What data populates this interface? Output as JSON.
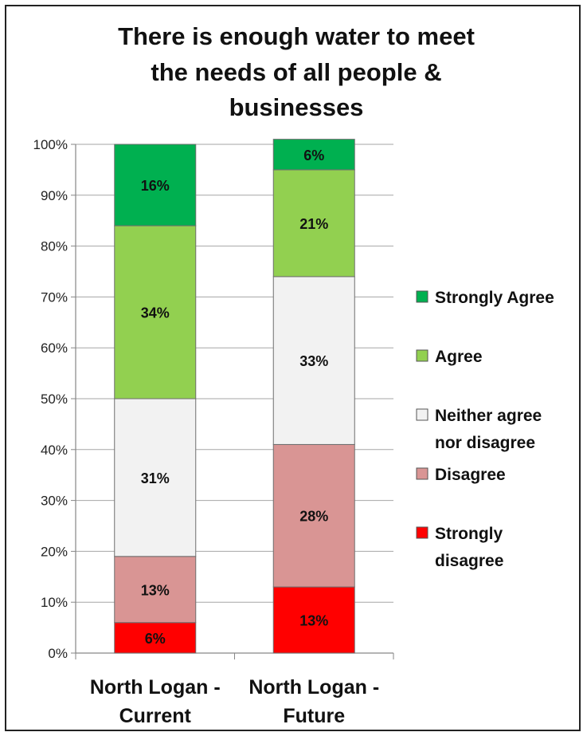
{
  "chart_data": {
    "type": "bar",
    "stacked": true,
    "title": [
      "There is enough water to meet",
      "the needs of all people &",
      "businesses"
    ],
    "ylim": [
      0,
      100
    ],
    "y_ticks": [
      "0%",
      "10%",
      "20%",
      "30%",
      "40%",
      "50%",
      "60%",
      "70%",
      "80%",
      "90%",
      "100%"
    ],
    "grid": true,
    "legend_position": "right",
    "categories": [
      [
        "North Logan -",
        "Current"
      ],
      [
        "North Logan -",
        "Future"
      ]
    ],
    "series": [
      {
        "name": [
          "Strongly",
          "disagree"
        ],
        "color": "#ff0000",
        "values": [
          6,
          13
        ],
        "labels": [
          "6%",
          "13%"
        ]
      },
      {
        "name": [
          "Disagree"
        ],
        "color": "#d99594",
        "values": [
          13,
          28
        ],
        "labels": [
          "13%",
          "28%"
        ]
      },
      {
        "name": [
          "Neither agree",
          "nor disagree"
        ],
        "color": "#f2f2f2",
        "values": [
          31,
          33
        ],
        "labels": [
          "31%",
          "33%"
        ]
      },
      {
        "name": [
          "Agree"
        ],
        "color": "#92d050",
        "values": [
          34,
          21
        ],
        "labels": [
          "34%",
          "21%"
        ]
      },
      {
        "name": [
          "Strongly Agree"
        ],
        "color": "#00b050",
        "values": [
          16,
          6
        ],
        "labels": [
          "16%",
          "6%"
        ]
      }
    ]
  }
}
